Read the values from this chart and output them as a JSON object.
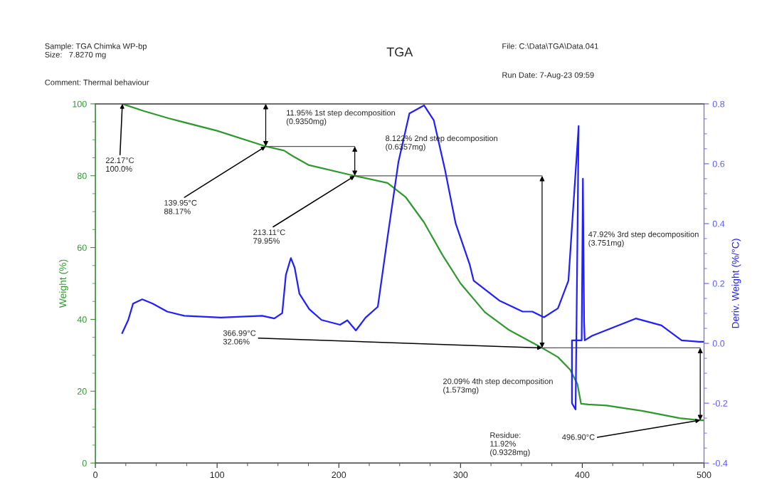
{
  "chart_data": {
    "type": "line",
    "title": "TGA",
    "ylabel": "Weight (%)",
    "y2label": "Deriv. Weight (%/°C)",
    "xlim": [
      0,
      500
    ],
    "xticks": [
      0,
      100,
      200,
      300,
      400,
      500
    ],
    "ylim": [
      0,
      100
    ],
    "yticks": [
      0,
      20,
      40,
      60,
      80,
      100
    ],
    "y2lim": [
      -0.4,
      0.8
    ],
    "y2ticks": [
      -0.4,
      -0.2,
      {
        "value": 0,
        "label": "0.0"
      },
      0.2,
      0.4,
      0.6,
      0.8
    ],
    "grid": false,
    "legend": false,
    "marker": "none",
    "line_style": "solid",
    "series": [
      {
        "color": "#2e9a2e",
        "axis": "y",
        "x": [
          22.17,
          40,
          60,
          100,
          139.95,
          155,
          162,
          175,
          213.11,
          240,
          255,
          270,
          285,
          300,
          320,
          340,
          366.99,
          380,
          390,
          396,
          399,
          405,
          420,
          450,
          480,
          496.9,
          500
        ],
        "values": [
          100,
          98,
          96,
          92.5,
          88.17,
          87,
          85.5,
          83,
          79.95,
          78,
          74,
          67,
          58,
          50,
          42,
          37,
          32.06,
          29.5,
          26,
          22,
          16.5,
          16.3,
          16,
          14.5,
          12.5,
          11.92,
          11.9
        ]
      },
      {
        "color": "#1f1fff",
        "axis": "y2",
        "x": [
          22,
          27,
          31,
          38.5,
          47,
          59,
          73,
          103,
          137,
          147,
          153.5,
          156.5,
          160.6,
          163.7,
          167.6,
          175.7,
          185.8,
          201,
          207,
          214,
          222,
          232,
          240,
          249,
          258,
          270,
          278,
          287,
          296,
          307.6,
          310.8,
          331.8,
          351,
          359,
          368.5,
          380,
          388.6,
          397,
          394.5,
          391.5,
          391.5,
          399.5,
          400.5,
          401.5,
          402,
          408,
          444,
          465,
          481.6,
          496,
          500
        ],
        "values": [
          0.034,
          0.078,
          0.133,
          0.147,
          0.133,
          0.106,
          0.092,
          0.086,
          0.092,
          0.083,
          0.101,
          0.229,
          0.285,
          0.253,
          0.166,
          0.114,
          0.078,
          0.062,
          0.077,
          0.043,
          0.086,
          0.122,
          0.354,
          0.607,
          0.768,
          0.795,
          0.745,
          0.584,
          0.4,
          0.262,
          0.209,
          0.143,
          0.106,
          0.106,
          0.087,
          0.117,
          0.209,
          0.726,
          -0.221,
          -0.2,
          0.01,
          0.01,
          0.55,
          0.07,
          0.01,
          0.025,
          0.083,
          0.06,
          0.01,
          0.005,
          0.005
        ]
      }
    ],
    "annotations": [
      {
        "text": "22.17°C\n100.0%",
        "x": 22.17,
        "y": 100
      },
      "11.95% 1st step decomposition\n(0.9350mg)",
      {
        "text": "139.95°C\n88.17%",
        "x": 139.95,
        "y": 88.17
      },
      "8.122% 2nd step decomposition\n(0.6357mg)",
      {
        "text": "213.11°C\n79.95%",
        "x": 213.11,
        "y": 79.95
      },
      "47.92% 3rd step decomposition\n(3.751mg)",
      {
        "text": "366.99°C\n32.06%",
        "x": 366.99,
        "y": 32.06
      },
      "20.09% 4th step decomposition\n(1.573mg)",
      {
        "text": "496.90°C",
        "x": 496.9,
        "y": 11.92
      },
      "Residue:\n11.92%\n(0.9328mg)",
      "Sample: TGA Chimka WP-bp\nSize:   7.8270 mg",
      "Comment: Thermal behaviour",
      "File: C:\\Data\\TGA\\Data.041",
      "Run Date: 7-Aug-23 09:59"
    ]
  }
}
